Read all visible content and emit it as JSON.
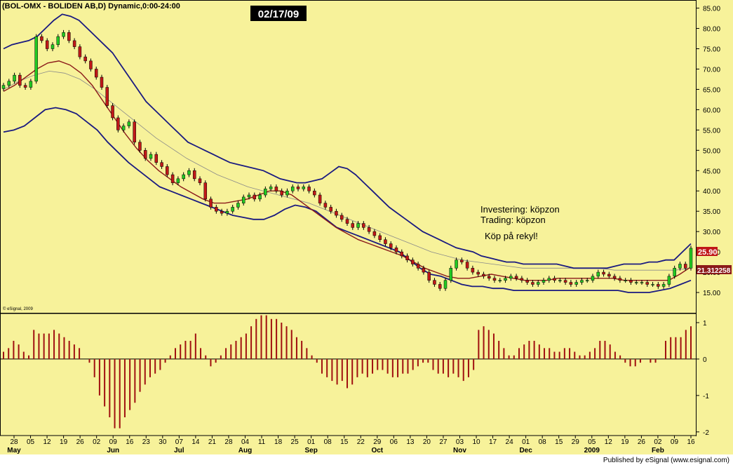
{
  "header": {
    "title": "(BOL-OMX - BOLIDEN AB,D) Dynamic,0:00-24:00",
    "date_badge": "02/17/09"
  },
  "annotations": {
    "line1": "Investering: köpzon",
    "line2": "Trading: köpzon",
    "line3": "Köp på rekyl!"
  },
  "footer": {
    "esignal_small": "© eSignal, 2009",
    "published": "Published by  eSignal (www.esignal.com)"
  },
  "colors": {
    "background": "#f7f29a",
    "up_candle": "#22c922",
    "down_candle": "#c01818",
    "upper_band": "#1a1a80",
    "lower_band": "#1a1a80",
    "short_ma": "#8b1a1a",
    "long_ma": "#8a8a8a",
    "histogram": "#a01010"
  },
  "chart_data": [
    {
      "type": "candlestick",
      "name": "price",
      "y_ticks": [
        "85.00",
        "80.00",
        "75.00",
        "70.00",
        "65.00",
        "60.00",
        "55.00",
        "50.00",
        "45.00",
        "40.00",
        "35.00",
        "30.00",
        "25.00",
        "20.00",
        "15.00"
      ],
      "ylim": [
        10,
        87
      ],
      "last_price_label": "25.90",
      "last_ma_label": "21.312258",
      "x_day_labels": [
        "28",
        "05",
        "12",
        "19",
        "26",
        "02",
        "09",
        "16",
        "23",
        "30",
        "07",
        "14",
        "21",
        "28",
        "04",
        "11",
        "18",
        "25",
        "01",
        "08",
        "15",
        "22",
        "29",
        "06",
        "13",
        "20",
        "27",
        "03",
        "10",
        "17",
        "24",
        "01",
        "08",
        "15",
        "29",
        "05",
        "12",
        "19",
        "26",
        "02",
        "09",
        "16"
      ],
      "x_month_labels": [
        {
          "label": "May",
          "at": "28"
        },
        {
          "label": "Jun",
          "at": "09"
        },
        {
          "label": "Jul",
          "at": "07"
        },
        {
          "label": "Aug",
          "at": "04"
        },
        {
          "label": "Sep",
          "at": "01"
        },
        {
          "label": "Oct",
          "at": "29"
        },
        {
          "label": "Nov",
          "at": "03"
        },
        {
          "label": "Dec",
          "at": "01"
        },
        {
          "label": "2009",
          "at": "05"
        },
        {
          "label": "Feb",
          "at": "02"
        }
      ],
      "closes": [
        66,
        67,
        68.5,
        66,
        65.5,
        67,
        78,
        77,
        75,
        76,
        78,
        79,
        77,
        75.5,
        73,
        72,
        70,
        68,
        65.5,
        61,
        58,
        55,
        56,
        57,
        52,
        50,
        48,
        49,
        47,
        46,
        44,
        42,
        43,
        44,
        45,
        43,
        42,
        38,
        36,
        35,
        34.5,
        35,
        36,
        37,
        38.5,
        39,
        38,
        39,
        40.5,
        41,
        40,
        39,
        40,
        41,
        40.5,
        41,
        40,
        39,
        37,
        36,
        35,
        34,
        33,
        32,
        31,
        32,
        31,
        30,
        29,
        28,
        27,
        26,
        25,
        24,
        23,
        22,
        21,
        20,
        18,
        17,
        16,
        18,
        21,
        23,
        22.5,
        21,
        20,
        19.5,
        19,
        18.5,
        18,
        18,
        18.5,
        19,
        18.5,
        18,
        17.5,
        17,
        17.5,
        18,
        18.5,
        18,
        18,
        17.5,
        17,
        17.5,
        18,
        18,
        19,
        20,
        19.5,
        19,
        18.5,
        18,
        18,
        17.5,
        17.5,
        17.5,
        17,
        17,
        16.5,
        17,
        19,
        21,
        22,
        21,
        25.9
      ],
      "upper_band": [
        75,
        76,
        76.5,
        77,
        78,
        80,
        82,
        83.5,
        83,
        82,
        80,
        78,
        76,
        74,
        71,
        68,
        65,
        62,
        60,
        58,
        56,
        54,
        52,
        51,
        50,
        49,
        48,
        47,
        46.5,
        46,
        45.5,
        45,
        44,
        43,
        42.5,
        42,
        42,
        42.5,
        43,
        44.5,
        46,
        45.5,
        44,
        42,
        40,
        38,
        36,
        34.5,
        33,
        31.5,
        30,
        29,
        28,
        27,
        26,
        25.5,
        25,
        24,
        23.5,
        23,
        22.5,
        22.5,
        22,
        22,
        22,
        22,
        22,
        21.5,
        21,
        21,
        21,
        21,
        21,
        21.5,
        22,
        22,
        22,
        22.5,
        22.5,
        23,
        23,
        25,
        27
      ],
      "lower_band": [
        54.5,
        55,
        56,
        58,
        60,
        60.5,
        60,
        59,
        57,
        55,
        52,
        49.5,
        47,
        45,
        43,
        41,
        40,
        39,
        38,
        37,
        36,
        35,
        34,
        33.5,
        33,
        33,
        34,
        35.5,
        36.5,
        36,
        35,
        33,
        31,
        30,
        29,
        28,
        27,
        26,
        25,
        23,
        21,
        19.5,
        19,
        18,
        17,
        16.5,
        16.5,
        16,
        16,
        15.5,
        15.5,
        15.5,
        15.5,
        15.5,
        15.5,
        15.5,
        15.5,
        15.5,
        15.5,
        15.5,
        15,
        15,
        15,
        15.5,
        16,
        17,
        18
      ],
      "short_ma": [
        64.5,
        66,
        68,
        70,
        71.5,
        72,
        71,
        69,
        66,
        62,
        58,
        54,
        50.5,
        47.5,
        45,
        43,
        41,
        39.5,
        38,
        37,
        37,
        37.5,
        38,
        39,
        40,
        40,
        39,
        37,
        35,
        33,
        31,
        29.5,
        28,
        27,
        26,
        25,
        24,
        22.5,
        21,
        20,
        19,
        18.5,
        18.5,
        19,
        19.5,
        19,
        18.5,
        18,
        18,
        18,
        18.5,
        18.5,
        18.5,
        18.5,
        18.5,
        18.5,
        18,
        18,
        18,
        18,
        18,
        19.5,
        21.3
      ],
      "long_ma": [
        65,
        67,
        68.5,
        69.5,
        69,
        67.5,
        65,
        62,
        59,
        56,
        53,
        50.5,
        48,
        46,
        44,
        42.5,
        41,
        40,
        39,
        38,
        37,
        35.5,
        34,
        32.5,
        31,
        29.5,
        28,
        26.5,
        25,
        24,
        23,
        22.5,
        22,
        21.5,
        21,
        21,
        21,
        21,
        21,
        21,
        20.5,
        20.5,
        20.5,
        20.5,
        20.5,
        21
      ]
    },
    {
      "type": "bar",
      "name": "oscillator",
      "y_ticks": [
        "1",
        "0",
        "-1",
        "-2"
      ],
      "ylim": [
        -2.1,
        1.25
      ],
      "values": [
        0.2,
        0.3,
        0.5,
        0.4,
        0.2,
        0.1,
        0.8,
        0.7,
        0.7,
        0.7,
        0.8,
        0.7,
        0.6,
        0.5,
        0.4,
        0.3,
        0,
        -0.1,
        -0.5,
        -1.0,
        -1.3,
        -1.6,
        -1.9,
        -1.9,
        -1.6,
        -1.4,
        -1.2,
        -0.9,
        -0.7,
        -0.5,
        -0.4,
        -0.3,
        -0.1,
        0.1,
        0.3,
        0.4,
        0.5,
        0.5,
        0.7,
        0.3,
        0.1,
        -0.2,
        -0.1,
        0.1,
        0.3,
        0.4,
        0.5,
        0.6,
        0.7,
        0.9,
        1.1,
        1.2,
        1.2,
        1.1,
        1.1,
        1.0,
        0.9,
        0.8,
        0.6,
        0.5,
        0.3,
        0.1,
        -0.1,
        -0.4,
        -0.5,
        -0.6,
        -0.7,
        -0.6,
        -0.8,
        -0.7,
        -0.5,
        -0.4,
        -0.5,
        -0.4,
        -0.3,
        -0.3,
        -0.4,
        -0.5,
        -0.5,
        -0.4,
        -0.4,
        -0.3,
        -0.2,
        -0.1,
        -0.1,
        -0.3,
        -0.4,
        -0.4,
        -0.5,
        -0.4,
        -0.5,
        -0.6,
        -0.5,
        -0.3,
        0.8,
        0.9,
        0.8,
        0.7,
        0.5,
        0.3,
        0.1,
        0.1,
        0.3,
        0.4,
        0.5,
        0.5,
        0.4,
        0.3,
        0.3,
        0.2,
        0.2,
        0.3,
        0.3,
        0.2,
        0.1,
        0.1,
        0.2,
        0.3,
        0.5,
        0.5,
        0.4,
        0.2,
        0.1,
        -0.1,
        -0.2,
        -0.2,
        -0.1,
        0,
        -0.1,
        -0.1,
        0,
        0.5,
        0.6,
        0.6,
        0.6,
        0.8,
        0.9
      ]
    }
  ]
}
